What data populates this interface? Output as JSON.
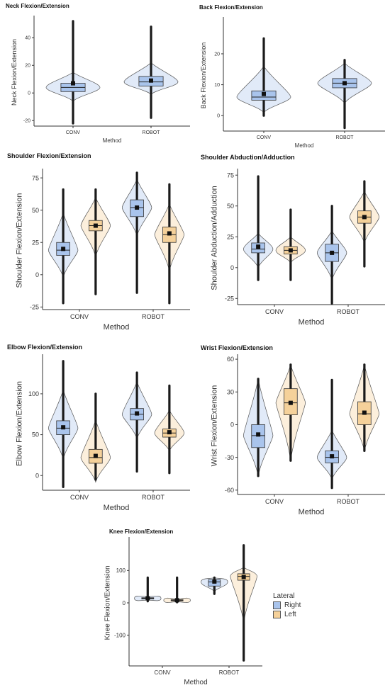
{
  "colors": {
    "right": "#a9c4ec",
    "left": "#f5d19a",
    "axis": "#333333",
    "point": "#111111"
  },
  "legend": {
    "title": "Lateral",
    "items": [
      "Right",
      "Left"
    ]
  },
  "chart_data": [
    {
      "id": "neck",
      "type": "violin",
      "title": "Neck Flexion/Extension",
      "xlabel": "Method",
      "ylabel": "Neck Flexion/Extension",
      "categories": [
        "CONV",
        "ROBOT"
      ],
      "ylim": [
        -24,
        54
      ],
      "yticks": [
        -20,
        0,
        20,
        40
      ],
      "series": [
        {
          "lateral": "right",
          "values": [
            {
              "category": "CONV",
              "min": -22,
              "q1": 1,
              "median": 4,
              "q3": 7,
              "max": 52,
              "mean": 7,
              "body": [
                -6,
                15
              ]
            },
            {
              "category": "ROBOT",
              "min": -18,
              "q1": 5,
              "median": 8,
              "q3": 12,
              "max": 48,
              "mean": 9,
              "body": [
                -1,
                22
              ]
            }
          ]
        }
      ]
    },
    {
      "id": "back",
      "type": "violin",
      "title": "Back Flexion/Extension",
      "xlabel": "Method",
      "ylabel": "Back Flexion/Extension",
      "categories": [
        "CONV",
        "ROBOT"
      ],
      "ylim": [
        -5,
        31
      ],
      "yticks": [
        0,
        10,
        20
      ],
      "series": [
        {
          "lateral": "right",
          "values": [
            {
              "category": "CONV",
              "min": 0,
              "q1": 5,
              "median": 6,
              "q3": 8,
              "max": 25,
              "mean": 7,
              "body": [
                1,
                16
              ]
            },
            {
              "category": "ROBOT",
              "min": -4,
              "q1": 9,
              "median": 10.5,
              "q3": 12,
              "max": 18,
              "mean": 10.5,
              "body": [
                4,
                17
              ]
            }
          ]
        }
      ]
    },
    {
      "id": "shoulder_flex",
      "type": "violin",
      "title": "Shoulder Flexion/Extension",
      "xlabel": "Method",
      "ylabel": "Shoulder Flexion/Extension",
      "categories": [
        "CONV",
        "ROBOT"
      ],
      "ylim": [
        -27,
        80
      ],
      "yticks": [
        -25,
        0,
        25,
        50,
        75
      ],
      "series": [
        {
          "lateral": "right",
          "values": [
            {
              "category": "CONV",
              "min": -22,
              "q1": 15,
              "median": 19,
              "q3": 25,
              "max": 66,
              "mean": 20,
              "body": [
                -2,
                48
              ]
            },
            {
              "category": "ROBOT",
              "min": -14,
              "q1": 45,
              "median": 52,
              "q3": 58,
              "max": 79,
              "mean": 52,
              "body": [
                30,
                74
              ]
            }
          ]
        },
        {
          "lateral": "left",
          "values": [
            {
              "category": "CONV",
              "min": -15,
              "q1": 34,
              "median": 38,
              "q3": 42,
              "max": 66,
              "mean": 38,
              "body": [
                14,
                60
              ]
            },
            {
              "category": "ROBOT",
              "min": -22,
              "q1": 25,
              "median": 31,
              "q3": 37,
              "max": 70,
              "mean": 32,
              "body": [
                3,
                55
              ]
            }
          ]
        }
      ]
    },
    {
      "id": "shoulder_abd",
      "type": "violin",
      "title": "Shoulder Abduction/Adduction",
      "xlabel": "Method",
      "ylabel": "Shoulder Abduction/Adduction",
      "categories": [
        "CONV",
        "ROBOT"
      ],
      "ylim": [
        -30,
        78
      ],
      "yticks": [
        -25,
        0,
        25,
        50,
        75
      ],
      "series": [
        {
          "lateral": "right",
          "values": [
            {
              "category": "CONV",
              "min": -10,
              "q1": 12,
              "median": 15,
              "q3": 20,
              "max": 74,
              "mean": 17,
              "body": [
                0,
                28
              ]
            },
            {
              "category": "ROBOT",
              "min": -29,
              "q1": 5,
              "median": 12,
              "q3": 19,
              "max": 50,
              "mean": 12,
              "body": [
                -10,
                30
              ]
            }
          ]
        },
        {
          "lateral": "left",
          "values": [
            {
              "category": "CONV",
              "min": -10,
              "q1": 11,
              "median": 14,
              "q3": 17,
              "max": 47,
              "mean": 14,
              "body": [
                4,
                25
              ]
            },
            {
              "category": "ROBOT",
              "min": 1,
              "q1": 36,
              "median": 41,
              "q3": 46,
              "max": 70,
              "mean": 41,
              "body": [
                20,
                62
              ]
            }
          ]
        }
      ]
    },
    {
      "id": "elbow",
      "type": "violin",
      "title": "Elbow Flexion/Extension",
      "xlabel": "Method",
      "ylabel": "Elbow Flexion/Extension",
      "categories": [
        "CONV",
        "ROBOT"
      ],
      "ylim": [
        -18,
        145
      ],
      "yticks": [
        0,
        50,
        100
      ],
      "series": [
        {
          "lateral": "right",
          "values": [
            {
              "category": "CONV",
              "min": -14,
              "q1": 50,
              "median": 58,
              "q3": 67,
              "max": 140,
              "mean": 59,
              "body": [
                20,
                105
              ]
            },
            {
              "category": "ROBOT",
              "min": 5,
              "q1": 68,
              "median": 75,
              "q3": 82,
              "max": 126,
              "mean": 76,
              "body": [
                45,
                115
              ]
            }
          ]
        },
        {
          "lateral": "left",
          "values": [
            {
              "category": "CONV",
              "min": -5,
              "q1": 15,
              "median": 22,
              "q3": 32,
              "max": 100,
              "mean": 24,
              "body": [
                -8,
                68
              ]
            },
            {
              "category": "ROBOT",
              "min": 3,
              "q1": 47,
              "median": 52,
              "q3": 57,
              "max": 110,
              "mean": 53,
              "body": [
                30,
                80
              ]
            }
          ]
        }
      ]
    },
    {
      "id": "wrist",
      "type": "violin",
      "title": "Wrist Flexion/Extension",
      "xlabel": "Method",
      "ylabel": "Wrist Flexion/Extension",
      "categories": [
        "CONV",
        "ROBOT"
      ],
      "ylim": [
        -64,
        62
      ],
      "yticks": [
        -60,
        -30,
        0,
        30,
        60
      ],
      "series": [
        {
          "lateral": "right",
          "values": [
            {
              "category": "CONV",
              "min": -47,
              "q1": -21,
              "median": -10,
              "q3": 0,
              "max": 42,
              "mean": -9,
              "body": [
                -47,
                42
              ]
            },
            {
              "category": "ROBOT",
              "min": -58,
              "q1": -35,
              "median": -30,
              "q3": -24,
              "max": 41,
              "mean": -29,
              "body": [
                -50,
                -5
              ]
            }
          ]
        },
        {
          "lateral": "left",
          "values": [
            {
              "category": "CONV",
              "min": -33,
              "q1": 9,
              "median": 20,
              "q3": 33,
              "max": 55,
              "mean": 20,
              "body": [
                -33,
                55
              ]
            },
            {
              "category": "ROBOT",
              "min": -24,
              "q1": 0,
              "median": 10,
              "q3": 21,
              "max": 55,
              "mean": 11,
              "body": [
                -24,
                55
              ]
            }
          ]
        }
      ]
    },
    {
      "id": "knee",
      "type": "violin",
      "title": "Knee Flexion/Extension",
      "xlabel": "Method",
      "ylabel": "Knee Flexion/Extension",
      "categories": [
        "CONV",
        "ROBOT"
      ],
      "ylim": [
        -195,
        195
      ],
      "yticks": [
        -100,
        0,
        100
      ],
      "series": [
        {
          "lateral": "right",
          "values": [
            {
              "category": "CONV",
              "min": 5,
              "q1": 12,
              "median": 14,
              "q3": 16,
              "max": 78,
              "mean": 14,
              "body": [
                8,
                20
              ]
            },
            {
              "category": "ROBOT",
              "min": 28,
              "q1": 52,
              "median": 65,
              "q3": 72,
              "max": 78,
              "mean": 66,
              "body": [
                35,
                78
              ]
            }
          ]
        },
        {
          "lateral": "left",
          "values": [
            {
              "category": "CONV",
              "min": 2,
              "q1": 6,
              "median": 8,
              "q3": 10,
              "max": 78,
              "mean": 8,
              "body": [
                3,
                12
              ]
            },
            {
              "category": "ROBOT",
              "min": -178,
              "q1": 70,
              "median": 82,
              "q3": 90,
              "max": 178,
              "mean": 80,
              "body": [
                -60,
                110
              ]
            }
          ]
        }
      ]
    }
  ]
}
